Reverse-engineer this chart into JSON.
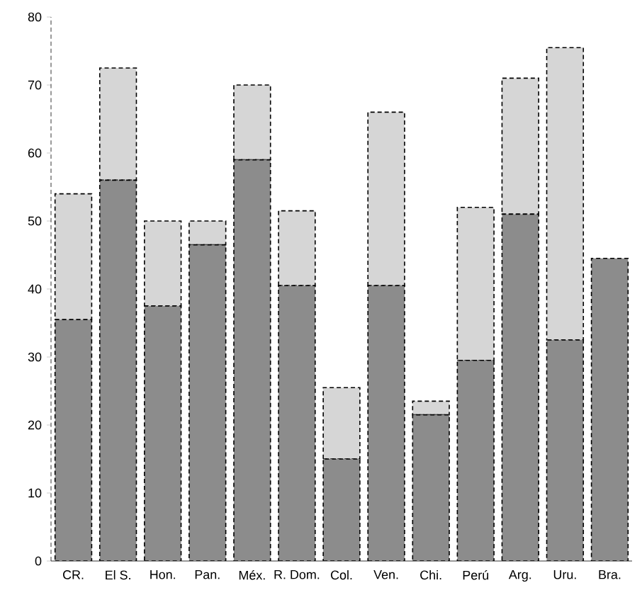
{
  "chart_data": {
    "type": "bar",
    "stacked": true,
    "categories": [
      "CR.",
      "El S.",
      "Hon.",
      "Pan.",
      "Méx.",
      "R. Dom.",
      "Col.",
      "Ven.",
      "Chi.",
      "Perú",
      "Arg.",
      "Uru.",
      "Bra."
    ],
    "series": [
      {
        "color": "#8c8c8c",
        "values": [
          35.5,
          56,
          37.5,
          46.5,
          59,
          40.5,
          15,
          40.5,
          21.5,
          29.5,
          51,
          32.5,
          44.5
        ]
      },
      {
        "color": "#d6d6d6",
        "values": [
          18.5,
          16.5,
          12.5,
          3.5,
          11,
          11,
          10.5,
          25.5,
          2,
          22.5,
          20,
          43,
          null
        ]
      }
    ],
    "ylim": [
      0,
      80
    ],
    "yticks": [
      0,
      10,
      20,
      30,
      40,
      50,
      60,
      70,
      80
    ],
    "grid": false
  }
}
